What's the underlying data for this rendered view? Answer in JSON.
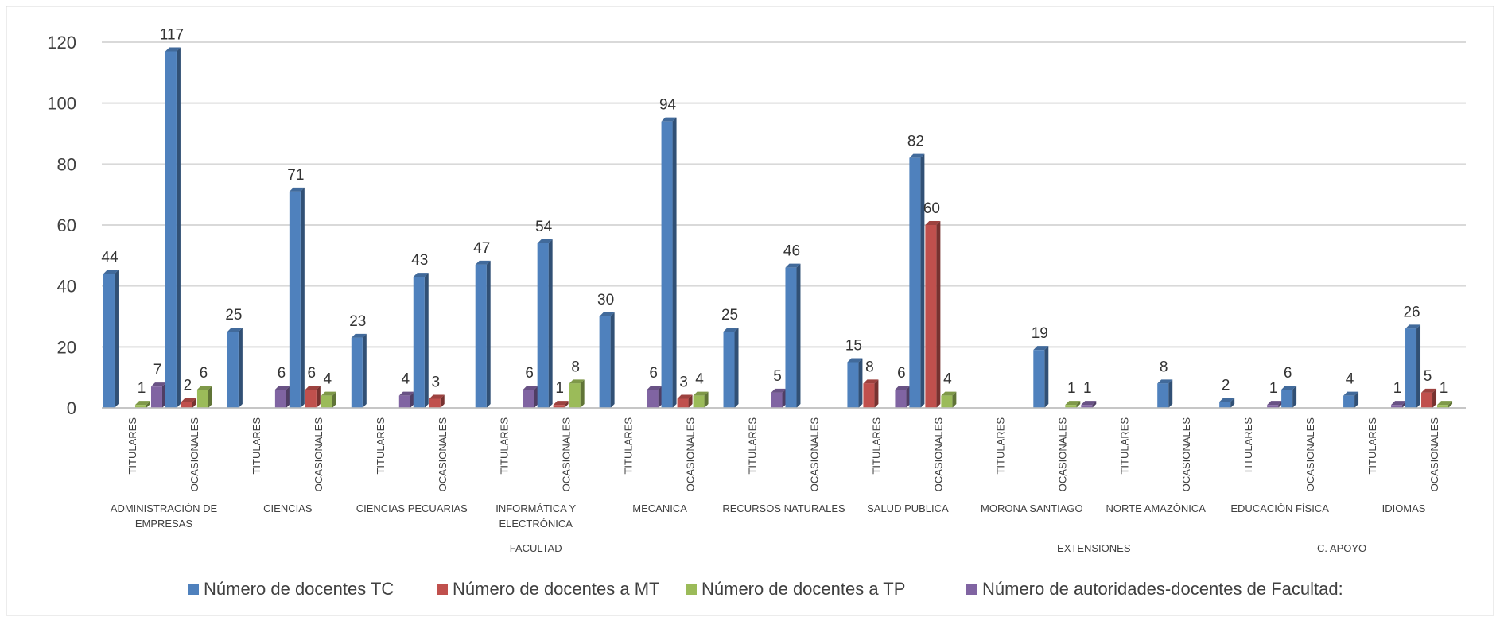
{
  "chart_data": {
    "type": "bar",
    "title": "",
    "ylim": [
      0,
      120
    ],
    "yticks": [
      0,
      20,
      40,
      60,
      80,
      100,
      120
    ],
    "grid": true,
    "legend_position": "bottom",
    "facultades": [
      "ADMINISTRACIÓN DE EMPRESAS",
      "CIENCIAS",
      "CIENCIAS PECUARIAS",
      "INFORMÁTICA Y ELECTRÓNICA",
      "MECANICA",
      "RECURSOS NATURALES",
      "SALUD PUBLICA",
      "MORONA SANTIAGO",
      "NORTE AMAZÓNICA",
      "EDUCACIÓN FÍSICA",
      "IDIOMAS"
    ],
    "groups": [
      {
        "label": "FACULTAD",
        "from": 0,
        "to": 6
      },
      {
        "label": "EXTENSIONES",
        "from": 7,
        "to": 8
      },
      {
        "label": "C. APOYO",
        "from": 9,
        "to": 10
      }
    ],
    "subcategories": [
      "TITULARES",
      "OCASIONALES"
    ],
    "series": [
      {
        "name": "Número de docentes TC",
        "color": "#4F81BD",
        "values": [
          44,
          117,
          25,
          71,
          23,
          43,
          47,
          54,
          30,
          94,
          25,
          46,
          15,
          82,
          null,
          19,
          null,
          8,
          2,
          6,
          4,
          26
        ]
      },
      {
        "name": "Número de docentes a MT",
        "color": "#C0504D",
        "values": [
          null,
          2,
          null,
          6,
          null,
          3,
          null,
          1,
          null,
          3,
          null,
          null,
          8,
          60,
          null,
          null,
          null,
          null,
          null,
          null,
          null,
          5
        ]
      },
      {
        "name": "Número de docentes a TP",
        "color": "#9BBB59",
        "values": [
          1,
          6,
          null,
          4,
          null,
          null,
          null,
          8,
          null,
          4,
          null,
          null,
          null,
          4,
          null,
          1,
          null,
          null,
          null,
          null,
          null,
          1
        ]
      },
      {
        "name": "Número de autoridades-docentes de Facultad:",
        "color": "#8064A2",
        "values": [
          7,
          null,
          6,
          null,
          4,
          null,
          6,
          null,
          6,
          null,
          5,
          null,
          6,
          null,
          null,
          1,
          null,
          null,
          1,
          null,
          1,
          null
        ]
      }
    ]
  }
}
